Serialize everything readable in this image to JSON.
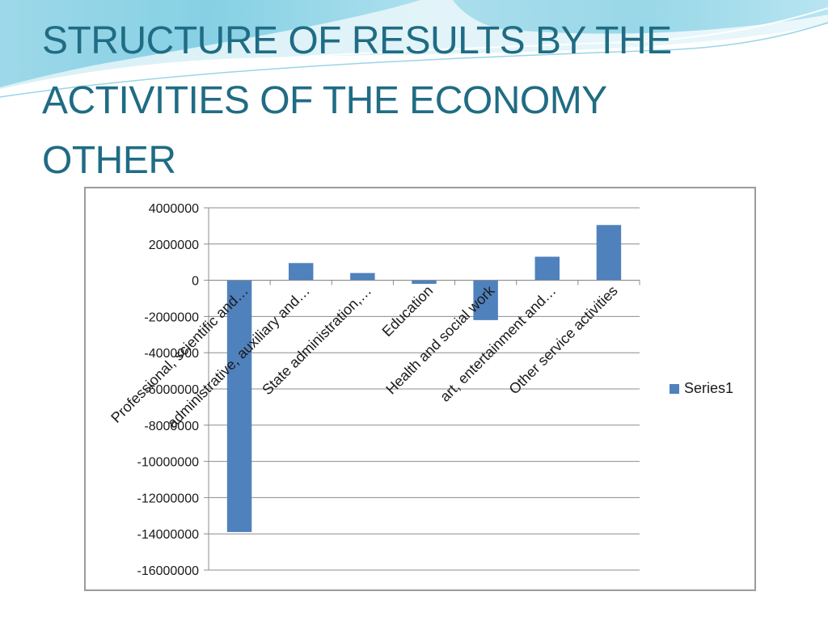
{
  "slide": {
    "title_lines": [
      "STRUCTURE OF RESULTS BY THE",
      "ACTIVITIES OF THE ECONOMY",
      "OTHER"
    ],
    "title_color": "#1f6c84",
    "accent_colors": [
      "#5fc3dc",
      "#bfe6f0"
    ]
  },
  "chart_data": {
    "type": "bar",
    "title": "",
    "xlabel": "",
    "ylabel": "",
    "categories": [
      "Professional, scientific and…",
      "administrative, auxiliary and…",
      "State administration,…",
      "Education",
      "Health and social work",
      "art, entertainment and…",
      "Other service activities"
    ],
    "series": [
      {
        "name": "Series1",
        "color": "#4f81bd",
        "values": [
          -13900000,
          950000,
          400000,
          -200000,
          -2200000,
          1300000,
          3050000
        ]
      }
    ],
    "ylim": [
      -16000000,
      4000000
    ],
    "ytick_step": 2000000,
    "yticks": [
      "4000000",
      "2000000",
      "0",
      "-2000000",
      "-4000000",
      "-6000000",
      "-8000000",
      "-10000000",
      "-12000000",
      "-14000000",
      "-16000000"
    ],
    "grid": true,
    "legend_position": "right"
  }
}
